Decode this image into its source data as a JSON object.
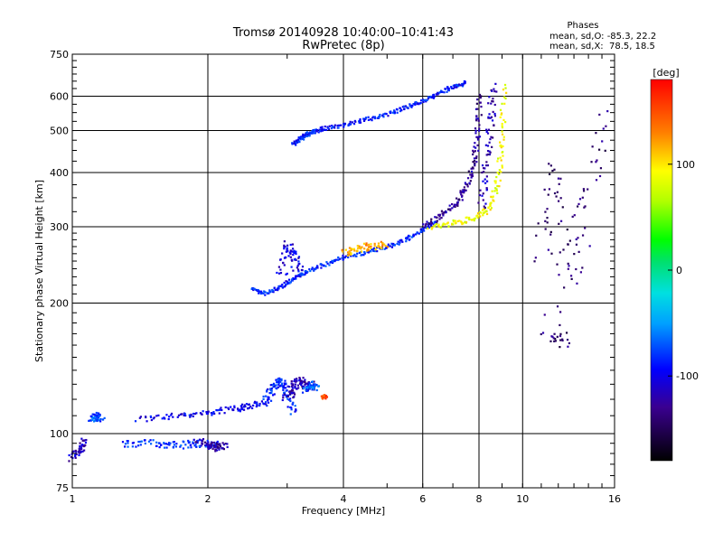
{
  "chart_data": {
    "type": "scatter",
    "title": "Tromsø 20140928 10:40:00–10:41:43",
    "subtitle": "RwPretec (8p)",
    "xlabel": "Frequency [MHz]",
    "ylabel": "Stationary phase Virtual Height [km]",
    "xscale": "log",
    "yscale": "log",
    "xlim": [
      1,
      16
    ],
    "ylim": [
      75,
      750
    ],
    "x_ticks": [
      "1",
      "2",
      "4",
      "6",
      "8",
      "10",
      "16"
    ],
    "x_tick_values": [
      1,
      2,
      4,
      6,
      8,
      10,
      16
    ],
    "y_ticks": [
      "75",
      "100",
      "200",
      "300",
      "400",
      "500",
      "600",
      "750"
    ],
    "y_tick_values": [
      75,
      100,
      200,
      300,
      400,
      500,
      600,
      750
    ],
    "grid": true,
    "phase_box": {
      "title": "Phases",
      "line_o": "mean, sd,O: -85.3, 22.2",
      "line_x": "mean, sd,X:  78.5, 18.5"
    },
    "colorbar": {
      "unit_label": "[deg]",
      "range": [
        -180,
        180
      ],
      "ticks": [
        "100",
        "0",
        "-100"
      ],
      "tick_values": [
        100,
        0,
        -100
      ]
    },
    "traces": [
      {
        "x": [
          1.0,
          1.04,
          1.07
        ],
        "y": [
          88,
          92,
          96
        ],
        "phase": -115,
        "spread": 0.02
      },
      {
        "x": [
          1.1,
          1.13,
          1.16
        ],
        "y": [
          108,
          110,
          108
        ],
        "phase": -75,
        "spread": 0.02
      },
      {
        "x": [
          1.3,
          1.5,
          1.7,
          1.9,
          2.1
        ],
        "y": [
          95,
          95,
          94,
          95,
          94
        ],
        "phase": -80,
        "spread": 0.02
      },
      {
        "x": [
          1.9,
          2.0,
          2.1,
          2.2
        ],
        "y": [
          96,
          94,
          93,
          94
        ],
        "phase": -125,
        "spread": 0.02
      },
      {
        "x": [
          1.4,
          1.7,
          2.0,
          2.3,
          2.5,
          2.7
        ],
        "y": [
          108,
          110,
          112,
          114,
          116,
          118
        ],
        "phase": -100,
        "spread": 0.015
      },
      {
        "x": [
          2.7,
          2.8,
          2.9,
          3.0,
          3.1
        ],
        "y": [
          120,
          128,
          132,
          124,
          112
        ],
        "phase": -85,
        "spread": 0.02
      },
      {
        "x": [
          3.0,
          3.1,
          3.2,
          3.3,
          3.4
        ],
        "y": [
          122,
          128,
          132,
          128,
          130
        ],
        "phase": -120,
        "spread": 0.025
      },
      {
        "x": [
          3.3,
          3.4,
          3.5
        ],
        "y": [
          126,
          130,
          128
        ],
        "phase": -70,
        "spread": 0.02
      },
      {
        "x": [
          2.5,
          2.7,
          2.9,
          3.1,
          3.3,
          3.6,
          4.0,
          4.5,
          5.0,
          5.5,
          6.0,
          6.4
        ],
        "y": [
          215,
          210,
          218,
          228,
          236,
          245,
          255,
          262,
          270,
          280,
          295,
          310
        ],
        "phase": -85,
        "spread": 0.01
      },
      {
        "x": [
          2.9,
          3.0,
          3.1,
          3.2
        ],
        "y": [
          230,
          270,
          260,
          235
        ],
        "phase": -105,
        "spread": 0.03
      },
      {
        "x": [
          3.1,
          3.2,
          3.3,
          3.4,
          3.6,
          4.0,
          4.5,
          5.0,
          5.5,
          6.0,
          6.5,
          7.0,
          7.5
        ],
        "y": [
          465,
          478,
          488,
          495,
          505,
          515,
          530,
          545,
          565,
          585,
          610,
          630,
          645
        ],
        "phase": -90,
        "spread": 0.01
      },
      {
        "x": [
          6.0,
          6.6,
          7.1,
          7.5,
          7.8,
          7.95,
          8.05
        ],
        "y": [
          300,
          318,
          340,
          370,
          420,
          500,
          620
        ],
        "phase": -130,
        "spread": 0.015
      },
      {
        "x": [
          6.2,
          7.0,
          7.8,
          8.4,
          8.8,
          9.0,
          9.1
        ],
        "y": [
          300,
          305,
          315,
          330,
          380,
          470,
          640
        ],
        "phase": 90,
        "spread": 0.015
      },
      {
        "x": [
          8.1,
          8.3,
          8.5,
          8.6
        ],
        "y": [
          330,
          420,
          520,
          640
        ],
        "phase": -120,
        "spread": 0.02
      },
      {
        "x": [
          4.0,
          4.3,
          4.6,
          5.0
        ],
        "y": [
          262,
          266,
          270,
          272
        ],
        "phase": 120,
        "spread": 0.02
      },
      {
        "x": [
          3.6,
          3.65
        ],
        "y": [
          122,
          121
        ],
        "phase": 150,
        "spread": 0.01
      },
      {
        "x": [
          11.0,
          11.8,
          13.0,
          15.0,
          11.5,
          12.5
        ],
        "y": [
          250,
          415,
          220,
          550,
          170,
          165
        ],
        "phase": -140,
        "spread": 0.05
      }
    ]
  }
}
